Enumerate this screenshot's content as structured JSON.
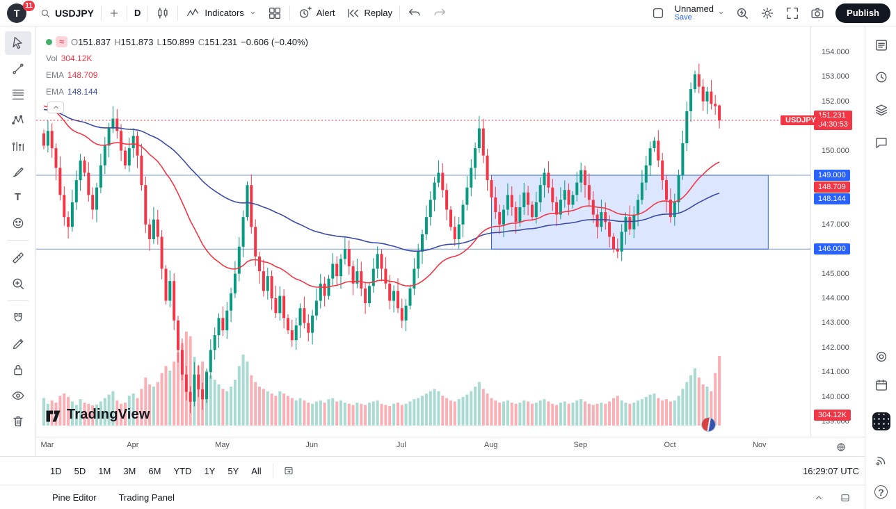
{
  "header": {
    "avatar_initial": "T",
    "notifications": "11",
    "symbol": "USDJPY",
    "interval": "D",
    "indicators": "Indicators",
    "alert": "Alert",
    "replay": "Replay",
    "layout_name": "Unnamed",
    "save": "Save",
    "publish": "Publish",
    "left_icons": [
      "search-icon",
      "plus-icon",
      "candlestick-style-icon",
      "indicators-icon",
      "layout-grid-icon",
      "alert-clock-icon",
      "replay-icon",
      "undo-icon",
      "redo-icon"
    ],
    "right_icons": [
      "save-status-icon",
      "caret-down-icon",
      "quick-search-icon",
      "settings-gear-icon",
      "fullscreen-icon",
      "camera-snapshot-icon"
    ]
  },
  "left_toolbar": {
    "icons": [
      "cursor-tool",
      "trend-line-tool",
      "fib-retracement-tool",
      "xabcd-pattern-tool",
      "forecast-tool",
      "brush-tool",
      "text-tool",
      "emoji-tool",
      "measure-tool",
      "zoom-in-tool",
      "magnet-tool",
      "draw-mode-tool",
      "lock-all-tool",
      "hide-all-tool",
      "remove-all-tool"
    ]
  },
  "right_sidebar": {
    "icons": [
      "watchlist-icon",
      "alerts-clock-icon",
      "object-tree-icon",
      "chat-icon",
      "hotlist-target-icon",
      "calendar-icon",
      "apps-grid-icon",
      "streams-signal-icon",
      "help-icon"
    ]
  },
  "legend": {
    "o_label": "O",
    "o": "151.837",
    "h_label": "H",
    "h": "151.873",
    "l_label": "L",
    "l": "150.899",
    "c_label": "C",
    "c": "151.231",
    "change": "−0.606 (−0.40%)",
    "vol_label": "Vol",
    "vol_value": "304.12K",
    "ema_fast_label": "EMA",
    "ema_fast_value": "148.709",
    "ema_slow_label": "EMA",
    "ema_slow_value": "148.144"
  },
  "axis": {
    "symbol_tag": "USDJPY",
    "last_price": "151.231",
    "countdown": "04:30:53",
    "upper_line": "149.000",
    "ema_fast": "148.709",
    "ema_slow": "148.144",
    "lower_line": "146.000",
    "volume_badge": "304.12K"
  },
  "range_bar": {
    "ranges": [
      "1D",
      "5D",
      "1M",
      "3M",
      "6M",
      "YTD",
      "1Y",
      "5Y",
      "All"
    ],
    "clock": "16:29:07 UTC"
  },
  "status_bar": {
    "tabs": [
      "Pine Editor",
      "Trading Panel"
    ]
  },
  "watermark": "TradingView",
  "colors": {
    "up": "#089981",
    "down": "#f23645",
    "accent": "#2962ff",
    "ema_fast": "#f23645",
    "ema_slow": "#3a4ba8",
    "box_fill": "rgba(41,98,255,0.16)",
    "line_blue": "#2f62d9"
  },
  "chart_data": {
    "type": "candlestick",
    "title": "USDJPY",
    "timeframe": "D",
    "months": [
      "Mar",
      "Apr",
      "May",
      "Jun",
      "Jul",
      "Aug",
      "Sep",
      "Oct",
      "Nov"
    ],
    "month_indices": [
      0,
      21,
      43,
      65,
      87,
      109,
      131,
      153,
      175
    ],
    "y_ticks": [
      154,
      153,
      152,
      151,
      150,
      149,
      148,
      147,
      146,
      145,
      144,
      143,
      142,
      141,
      140,
      139
    ],
    "y_range": [
      138.8,
      154.6
    ],
    "closes": [
      150.2,
      150.8,
      150.1,
      149.3,
      148.2,
      147.3,
      146.9,
      147.9,
      148.8,
      149.6,
      149.1,
      148.2,
      147.6,
      148.5,
      149.4,
      150.2,
      150.9,
      151.3,
      150.8,
      150.0,
      149.4,
      150.1,
      150.6,
      149.8,
      148.6,
      147.0,
      146.4,
      147.2,
      146.5,
      145.2,
      143.9,
      144.7,
      143.1,
      141.9,
      140.9,
      140.2,
      139.8,
      140.9,
      140.3,
      139.9,
      141.0,
      141.9,
      142.5,
      143.2,
      142.7,
      143.5,
      144.2,
      145.0,
      146.1,
      147.3,
      148.6,
      146.9,
      145.7,
      145.1,
      144.3,
      144.9,
      144.0,
      143.4,
      144.1,
      143.2,
      142.7,
      142.3,
      142.9,
      143.6,
      143.0,
      142.6,
      143.3,
      143.9,
      144.6,
      144.1,
      144.8,
      145.4,
      144.9,
      145.6,
      146.0,
      145.3,
      144.6,
      145.1,
      144.4,
      143.8,
      144.5,
      145.2,
      145.8,
      145.2,
      144.6,
      143.9,
      144.3,
      143.6,
      143.1,
      143.7,
      144.4,
      145.2,
      145.9,
      146.6,
      147.3,
      148.0,
      148.7,
      149.1,
      148.4,
      147.6,
      146.9,
      146.4,
      147.0,
      147.8,
      148.5,
      149.3,
      150.1,
      150.9,
      149.8,
      148.8,
      148.1,
      147.5,
      147.0,
      147.6,
      148.2,
      147.7,
      147.1,
      147.7,
      148.3,
      147.8,
      147.3,
      147.9,
      148.6,
      149.1,
      148.5,
      147.9,
      147.4,
      148.0,
      148.4,
      147.8,
      148.2,
      148.7,
      149.2,
      148.6,
      148.0,
      147.4,
      146.9,
      147.5,
      147.1,
      146.5,
      146.0,
      145.9,
      146.7,
      147.3,
      146.8,
      147.4,
      148.0,
      148.7,
      149.4,
      150.1,
      150.4,
      149.6,
      148.8,
      148.0,
      147.3,
      147.9,
      149.0,
      150.3,
      151.6,
      152.5,
      153.1,
      152.6,
      152.0,
      152.4,
      151.9,
      151.8,
      151.231
    ],
    "volumes": [
      120,
      95,
      110,
      100,
      130,
      140,
      125,
      105,
      90,
      115,
      100,
      95,
      88,
      92,
      105,
      120,
      135,
      150,
      110,
      95,
      100,
      130,
      140,
      120,
      160,
      210,
      180,
      170,
      190,
      230,
      260,
      240,
      280,
      320,
      360,
      410,
      390,
      300,
      260,
      280,
      240,
      220,
      200,
      180,
      160,
      150,
      170,
      200,
      260,
      310,
      280,
      220,
      190,
      170,
      160,
      150,
      140,
      130,
      150,
      140,
      130,
      120,
      110,
      120,
      110,
      100,
      95,
      105,
      110,
      100,
      115,
      120,
      105,
      110,
      100,
      95,
      90,
      100,
      95,
      90,
      100,
      105,
      110,
      95,
      90,
      85,
      95,
      100,
      90,
      95,
      105,
      115,
      120,
      130,
      140,
      150,
      160,
      150,
      130,
      120,
      110,
      105,
      115,
      125,
      135,
      150,
      170,
      190,
      160,
      140,
      120,
      110,
      100,
      105,
      110,
      100,
      95,
      100,
      110,
      105,
      95,
      100,
      110,
      115,
      105,
      95,
      90,
      100,
      105,
      95,
      100,
      110,
      115,
      105,
      95,
      90,
      95,
      100,
      95,
      105,
      120,
      130,
      110,
      100,
      95,
      100,
      110,
      115,
      125,
      135,
      140,
      120,
      110,
      115,
      105,
      110,
      130,
      160,
      190,
      220,
      250,
      210,
      180,
      170,
      150,
      230,
      304
    ],
    "last_candle": {
      "o": 151.837,
      "h": 151.873,
      "l": 150.899,
      "c": 151.231
    },
    "current_price": 151.231,
    "countdown": "04:30:53",
    "last_volume_label": "304.12K",
    "price_lines": [
      149.0,
      146.0
    ],
    "box": {
      "start_index": 110,
      "end_index": 178,
      "top": 149.0,
      "bottom": 146.0
    },
    "ema_fast_value": 148.709,
    "ema_slow_value": 148.144
  }
}
